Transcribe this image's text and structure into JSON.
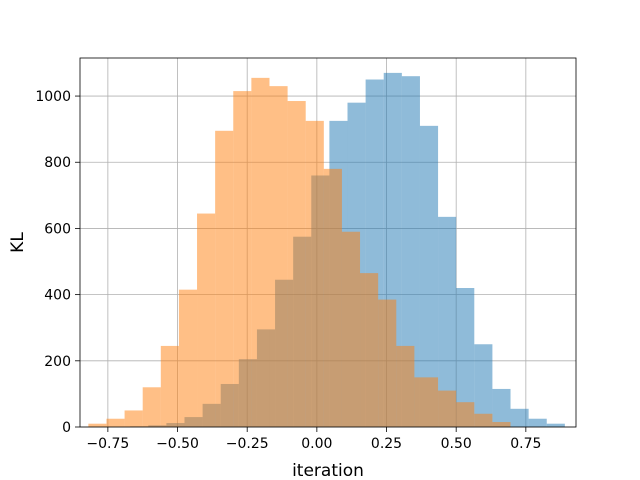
{
  "chart_data": {
    "type": "bar",
    "subtype": "overlapping-histogram",
    "title": "",
    "xlabel": "iteration",
    "ylabel": "KL",
    "xlim": [
      -0.85,
      0.93
    ],
    "ylim": [
      0,
      1115
    ],
    "grid": true,
    "x_ticks": [
      -0.75,
      -0.5,
      -0.25,
      0.0,
      0.25,
      0.5,
      0.75
    ],
    "x_tick_labels": [
      "−0.75",
      "−0.50",
      "−0.25",
      "0.00",
      "0.25",
      "0.50",
      "0.75"
    ],
    "y_ticks": [
      0,
      200,
      400,
      600,
      800,
      1000
    ],
    "y_tick_labels": [
      "0",
      "200",
      "400",
      "600",
      "800",
      "1000"
    ],
    "series": [
      {
        "color": "#1f77b4",
        "alpha": 0.5,
        "bin_edges": [
          -0.67,
          -0.605,
          -0.54,
          -0.475,
          -0.41,
          -0.345,
          -0.28,
          -0.215,
          -0.15,
          -0.085,
          -0.02,
          0.045,
          0.11,
          0.175,
          0.24,
          0.305,
          0.37,
          0.435,
          0.5,
          0.565,
          0.63,
          0.695,
          0.76,
          0.825,
          0.89
        ],
        "values": [
          2,
          5,
          12,
          30,
          70,
          130,
          205,
          295,
          445,
          575,
          760,
          925,
          980,
          1050,
          1070,
          1060,
          910,
          635,
          420,
          250,
          115,
          55,
          25,
          10
        ]
      },
      {
        "color": "#ff7f0e",
        "alpha": 0.5,
        "bin_edges": [
          -0.82,
          -0.755,
          -0.69,
          -0.625,
          -0.56,
          -0.495,
          -0.43,
          -0.365,
          -0.3,
          -0.235,
          -0.17,
          -0.105,
          -0.04,
          0.025,
          0.09,
          0.155,
          0.22,
          0.285,
          0.35,
          0.435,
          0.5,
          0.565,
          0.63,
          0.695
        ],
        "values": [
          10,
          25,
          50,
          120,
          245,
          415,
          645,
          895,
          1015,
          1055,
          1030,
          985,
          925,
          780,
          590,
          465,
          385,
          245,
          150,
          110,
          75,
          40,
          15
        ]
      }
    ]
  }
}
